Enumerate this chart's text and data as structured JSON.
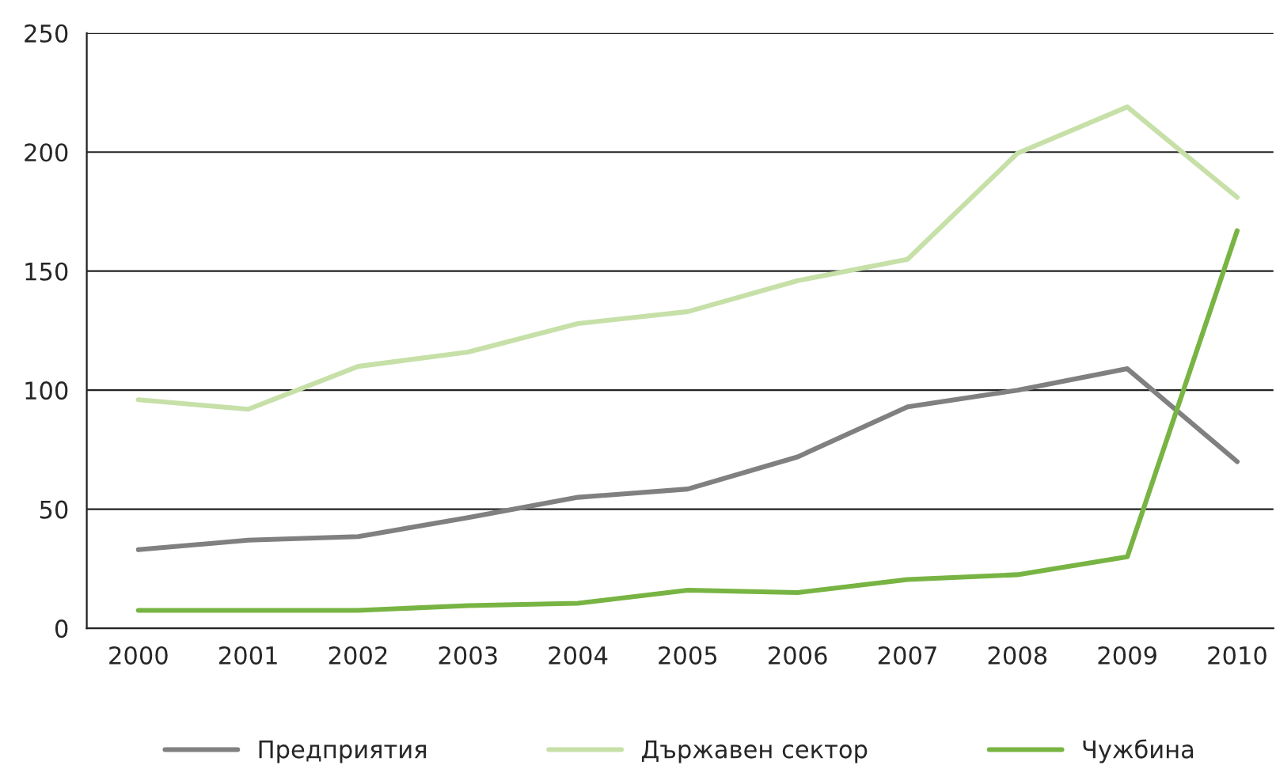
{
  "chart_data": {
    "type": "line",
    "categories": [
      "2000",
      "2001",
      "2002",
      "2003",
      "2004",
      "2005",
      "2006",
      "2007",
      "2008",
      "2009",
      "2010"
    ],
    "series": [
      {
        "name": "Предприятия",
        "color": "#808080",
        "values": [
          33,
          37,
          38.5,
          46.5,
          55,
          58.5,
          72,
          93,
          100,
          109,
          70
        ]
      },
      {
        "name": "Държавен сектор",
        "color": "#c6e0a8",
        "values": [
          96,
          92,
          110,
          116,
          128,
          133,
          146,
          155,
          199.5,
          219,
          181
        ]
      },
      {
        "name": "Чужбина",
        "color": "#78b443",
        "values": [
          7.5,
          7.5,
          7.5,
          9.5,
          10.5,
          16,
          15,
          20.5,
          22.5,
          30,
          167
        ]
      }
    ],
    "ylim": [
      0,
      250
    ],
    "yticks": [
      0,
      50,
      100,
      150,
      200,
      250
    ],
    "grid": "y",
    "legend": "bottom",
    "marker": "none",
    "line_style": "solid"
  }
}
